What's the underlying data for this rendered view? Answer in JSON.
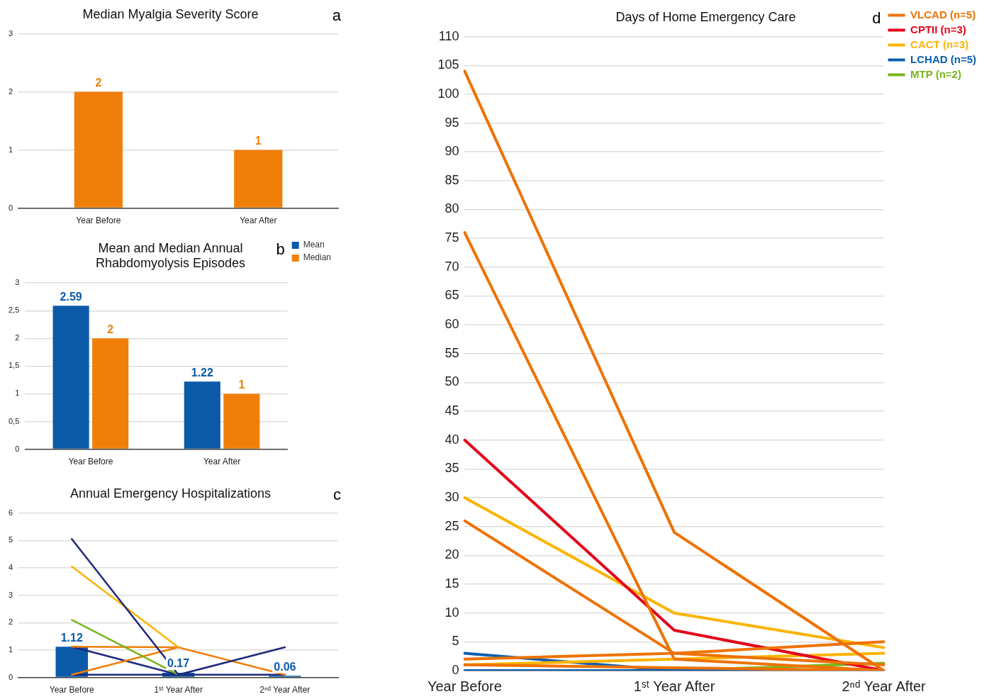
{
  "chart_data": [
    {
      "type": "bar",
      "title": "Median Myalgia Severity Score",
      "categories": [
        "Year Before",
        "Year After"
      ],
      "values": [
        2,
        1
      ],
      "color": "#f07f09",
      "ylim": [
        0,
        3
      ],
      "yticks": [
        0,
        1,
        2,
        3
      ],
      "grid": "y",
      "data_labels": true,
      "legend": false,
      "annotations": [
        "a"
      ]
    },
    {
      "type": "bar",
      "title": "Mean and Median Annual Rhabdomyolysis Episodes",
      "categories": [
        "Year Before",
        "Year After"
      ],
      "series": [
        {
          "name": "Mean",
          "color": "#0a5aa8",
          "values": [
            2.59,
            1.22
          ]
        },
        {
          "name": "Median",
          "color": "#f07f09",
          "values": [
            2,
            1
          ]
        }
      ],
      "ylim": [
        0,
        3
      ],
      "yticks": [
        0,
        {
          "value": 0.5,
          "label": "0,5"
        },
        1,
        {
          "value": 1.5,
          "label": "1,5"
        },
        2,
        {
          "value": 2.5,
          "label": "2,5"
        },
        3
      ],
      "grid": "y",
      "data_labels": true,
      "legend": "top right",
      "annotations": [
        "b"
      ]
    },
    {
      "type": "bar",
      "title": "Annual Emergency Hospitalizations",
      "categories": [
        "Year Before",
        "1ˢᵗ Year After",
        "2ⁿᵈ Year After"
      ],
      "series": [
        {
          "color": "#0a5aa8",
          "values": [
            1.12,
            0.17,
            0.06
          ],
          "value_labels": [
            "1.12",
            "0.17",
            "0.06"
          ]
        },
        {
          "type": "line",
          "color": "#1f2a7a",
          "values": [
            5.05,
            0.1,
            1.1
          ]
        },
        {
          "type": "line",
          "color": "#fbb400",
          "values": [
            4.05,
            1.1,
            null
          ]
        },
        {
          "type": "line",
          "color": "#7ab51d",
          "values": [
            2.1,
            0.1,
            null
          ]
        },
        {
          "type": "line",
          "color": "#f07f09",
          "values": [
            1.12,
            1.1,
            0.1
          ]
        },
        {
          "type": "line",
          "color": "#f07f09",
          "values": [
            0.1,
            1.1,
            null
          ]
        },
        {
          "type": "line",
          "color": "#1f2a7a",
          "values": [
            1.12,
            0.1,
            null
          ]
        },
        {
          "type": "line",
          "color": "#1f2a7a",
          "values": [
            0.1,
            0.1,
            0.1
          ]
        }
      ],
      "ylim": [
        0,
        6
      ],
      "yticks": [
        0,
        1,
        2,
        3,
        4,
        5,
        6
      ],
      "grid": "y",
      "marker": "none",
      "legend": false,
      "annotations": [
        "c"
      ]
    },
    {
      "type": "line",
      "title": "Days of Home Emergency Care",
      "categories": [
        "Year Before",
        "1ˢᵗ Year After",
        "2ⁿᵈ Year After"
      ],
      "series": [
        {
          "name": "VLCAD (n=5)",
          "color": "#ee7203",
          "values": [
            104,
            24,
            0
          ]
        },
        {
          "color": "#ee7203",
          "values": [
            76,
            2,
            0
          ]
        },
        {
          "color": "#ee7203",
          "values": [
            26,
            3,
            1
          ]
        },
        {
          "color": "#ee7203",
          "values": [
            2,
            3,
            5
          ]
        },
        {
          "color": "#ee7203",
          "values": [
            1,
            0.5,
            0
          ]
        },
        {
          "name": "CPTII (n=3)",
          "color": "#e3001b",
          "values": [
            40,
            7,
            0
          ]
        },
        {
          "name": "CACT (n=3)",
          "color": "#fbb400",
          "values": [
            30,
            10,
            4
          ]
        },
        {
          "color": "#fbb400",
          "values": [
            1,
            2,
            3
          ]
        },
        {
          "name": "LCHAD (n=5)",
          "color": "#0a5fb4",
          "values": [
            3,
            0,
            0
          ]
        },
        {
          "color": "#0a5fb4",
          "values": [
            0,
            0,
            0
          ]
        },
        {
          "name": "MTP (n=2)",
          "color": "#7ab51d",
          "values": [
            null,
            0,
            1.3
          ]
        }
      ],
      "ylim": [
        0,
        110
      ],
      "yticks": [
        0,
        5,
        10,
        15,
        20,
        25,
        30,
        35,
        40,
        45,
        50,
        55,
        60,
        65,
        70,
        75,
        80,
        85,
        90,
        95,
        100,
        105,
        110
      ],
      "grid": "y",
      "marker": "none",
      "line_style": "solid",
      "legend": "top right",
      "annotations": [
        "d"
      ]
    }
  ]
}
